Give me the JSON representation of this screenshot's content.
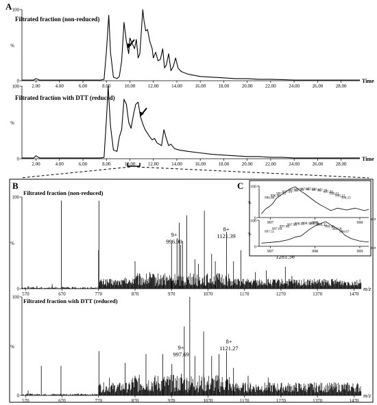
{
  "panels": [
    {
      "letter": "A",
      "title": "Filtrated fraction (non-reduced)"
    },
    {
      "letter": "",
      "title": "Filtrated fraction with DTT  (reduced)"
    },
    {
      "letter": "B",
      "title": "Filtrated fraction (non-reduced)"
    },
    {
      "letter": "",
      "title": "Filtrated fraction with DTT  (reduced)"
    },
    {
      "letter": "C",
      "title": ""
    },
    {
      "letter": "",
      "title": ""
    }
  ],
  "chart_data": [
    {
      "type": "line",
      "title": "Filtrated fraction (non-reduced)",
      "xlabel": "Time",
      "ylabel": "%",
      "xlim": [
        0.8,
        29.6
      ],
      "ylim": [
        0,
        100
      ],
      "x_ticks": [
        "2.00",
        "4.00",
        "6.00",
        "8.00",
        "10.00",
        "12.00",
        "14.00",
        "16.00",
        "18.00",
        "20.00",
        "22.00",
        "24.00",
        "26.00",
        "28.00"
      ],
      "y_ticks": [
        "0",
        "100"
      ],
      "series": [
        {
          "x": [
            0.8,
            1.5,
            1.8,
            2.0,
            2.3,
            3,
            4,
            5,
            6,
            7,
            7.5,
            7.8,
            8.0,
            8.2,
            8.35,
            8.6,
            8.9,
            9.1,
            9.3,
            9.5,
            9.7,
            9.9,
            10.0,
            10.2,
            10.4,
            10.55,
            10.7,
            10.85,
            11.0,
            11.1,
            11.2,
            11.35,
            11.5,
            11.7,
            11.9,
            12.0,
            12.2,
            12.4,
            12.6,
            12.8,
            12.95,
            13.1,
            13.3,
            13.5,
            13.7,
            13.9,
            14.1,
            14.3,
            14.5,
            15,
            16,
            17,
            18,
            19,
            20,
            21,
            22,
            23,
            24,
            25,
            26,
            27,
            28,
            29.6
          ],
          "y": [
            1,
            1,
            1,
            3,
            1,
            1,
            1,
            1,
            1,
            1,
            1,
            2,
            42,
            92,
            40,
            5,
            3,
            6,
            28,
            82,
            55,
            38,
            60,
            52,
            45,
            58,
            32,
            38,
            75,
            100,
            85,
            70,
            72,
            55,
            45,
            32,
            40,
            28,
            30,
            45,
            18,
            22,
            38,
            14,
            20,
            32,
            18,
            14,
            12,
            9,
            6,
            5,
            4,
            3,
            3,
            2,
            2,
            1.5,
            1,
            1,
            1,
            1,
            1,
            1
          ]
        }
      ],
      "annotations": [
        "arrow"
      ]
    },
    {
      "type": "line",
      "title": "Filtrated fraction with DTT  (reduced)",
      "xlabel": "Time",
      "ylabel": "%",
      "xlim": [
        0.8,
        29.6
      ],
      "ylim": [
        0,
        100
      ],
      "x_ticks": [
        "2.00",
        "4.00",
        "6.00",
        "8.00",
        "10.00",
        "12.00",
        "14.00",
        "16.00",
        "18.00",
        "20.00",
        "22.00",
        "24.00",
        "26.00",
        "28.00"
      ],
      "y_ticks": [
        "0",
        "100"
      ],
      "series": [
        {
          "x": [
            0.8,
            1.5,
            1.8,
            2.0,
            2.3,
            3,
            4,
            5,
            6,
            7,
            7.5,
            7.8,
            8.0,
            8.15,
            8.35,
            8.6,
            8.9,
            9.1,
            9.3,
            9.5,
            9.7,
            9.9,
            10.1,
            10.3,
            10.5,
            10.7,
            10.9,
            11.1,
            11.3,
            11.5,
            11.7,
            11.9,
            12.1,
            12.3,
            12.5,
            12.7,
            12.9,
            13.1,
            13.3,
            13.5,
            13.8,
            14.2,
            15,
            16,
            17,
            18,
            19,
            20,
            21,
            22,
            23,
            24,
            25,
            26,
            27,
            28,
            29.6
          ],
          "y": [
            1,
            1,
            1,
            4,
            1,
            1,
            1,
            1,
            1,
            1,
            1,
            2,
            55,
            100,
            45,
            12,
            10,
            30,
            40,
            82,
            75,
            50,
            42,
            60,
            75,
            78,
            58,
            48,
            40,
            35,
            30,
            26,
            28,
            22,
            20,
            18,
            40,
            28,
            18,
            20,
            14,
            12,
            10,
            8,
            6,
            5,
            4,
            3,
            3,
            2,
            2,
            1,
            1,
            1,
            1,
            1,
            1
          ]
        }
      ],
      "annotations": [
        "arrow"
      ]
    },
    {
      "type": "line",
      "title": "Filtrated fraction (non-reduced)",
      "xlabel": "m/z",
      "ylabel": "%",
      "xlim": [
        560,
        1490
      ],
      "ylim": [
        0,
        100
      ],
      "x_ticks": [
        "570",
        "670",
        "770",
        "870",
        "970",
        "1070",
        "1170",
        "1270",
        "1370",
        "1470"
      ],
      "y_ticks": [
        "0",
        "100"
      ],
      "sticks": [
        [
          577,
          3
        ],
        [
          601,
          3
        ],
        [
          643,
          5
        ],
        [
          668,
          96
        ],
        [
          770,
          42
        ],
        [
          771,
          96
        ],
        [
          790,
          10
        ],
        [
          843,
          12
        ],
        [
          870,
          30
        ],
        [
          910,
          18
        ],
        [
          948,
          15
        ],
        [
          970,
          50
        ],
        [
          985,
          55
        ],
        [
          991,
          72
        ],
        [
          995,
          48
        ],
        [
          1000,
          52
        ],
        [
          1012,
          80
        ],
        [
          1034,
          32
        ],
        [
          1044,
          27
        ],
        [
          1060,
          85
        ],
        [
          1080,
          38
        ],
        [
          1090,
          30
        ],
        [
          1121,
          62
        ],
        [
          1140,
          30
        ],
        [
          1160,
          42
        ],
        [
          1200,
          18
        ],
        [
          1230,
          20
        ],
        [
          1282,
          24
        ],
        [
          1300,
          14
        ]
      ],
      "peak_labels": [
        {
          "charge": "9+",
          "mz": "996.90"
        },
        {
          "charge": "8+",
          "mz": "1121.39"
        },
        {
          "charge": "7+",
          "mz": "1281.56"
        }
      ]
    },
    {
      "type": "line",
      "title": "Filtrated fraction with DTT  (reduced)",
      "xlabel": "m/z",
      "ylabel": "%",
      "xlim": [
        560,
        1490
      ],
      "ylim": [
        0,
        100
      ],
      "x_ticks": [
        "570",
        "670",
        "770",
        "870",
        "970",
        "1070",
        "1170",
        "1270",
        "1370",
        "1470"
      ],
      "y_ticks": [
        "0",
        "100"
      ],
      "sticks": [
        [
          577,
          5
        ],
        [
          613,
          30
        ],
        [
          667,
          30
        ],
        [
          770,
          10
        ],
        [
          771,
          45
        ],
        [
          800,
          18
        ],
        [
          843,
          33
        ],
        [
          870,
          20
        ],
        [
          900,
          42
        ],
        [
          946,
          42
        ],
        [
          971,
          32
        ],
        [
          997,
          22
        ],
        [
          1005,
          70
        ],
        [
          1020,
          100
        ],
        [
          1034,
          40
        ],
        [
          1058,
          65
        ],
        [
          1080,
          40
        ],
        [
          1100,
          42
        ],
        [
          1121,
          45
        ],
        [
          1140,
          28
        ],
        [
          1180,
          20
        ],
        [
          1235,
          18
        ]
      ],
      "peak_labels": [
        {
          "charge": "9+",
          "mz": "997.69"
        },
        {
          "charge": "8+",
          "mz": "1121.27"
        }
      ]
    },
    {
      "type": "line",
      "title": "",
      "xlabel": "m/z",
      "ylabel": "%",
      "xlim": [
        996.75,
        999.2
      ],
      "ylim": [
        0,
        100
      ],
      "x_ticks": [
        "997",
        "998",
        "999"
      ],
      "y_ticks": [
        "0",
        "100"
      ],
      "series": [
        {
          "x": [
            996.8,
            996.9,
            996.98,
            997.06,
            997.13,
            997.24,
            997.35,
            997.45,
            997.56,
            997.67,
            997.78,
            997.9,
            998.01,
            998.12,
            998.23,
            998.35,
            998.5,
            998.7,
            998.9,
            999.1,
            999.2
          ],
          "y": [
            12,
            28,
            35,
            45,
            60,
            72,
            82,
            92,
            98,
            85,
            75,
            62,
            50,
            40,
            32,
            22,
            30,
            24,
            30,
            22,
            26
          ]
        }
      ],
      "peak_labels": [
        "996.80",
        "996.90",
        "997.01",
        "997.13",
        "997.24",
        "997.35",
        "997.45",
        "997.56",
        "997.67",
        "997.78",
        "997.90",
        "998.01",
        "998.12",
        "998.23"
      ]
    },
    {
      "type": "line",
      "title": "",
      "xlabel": "m/z",
      "ylabel": "%",
      "xlim": [
        996.75,
        999.2
      ],
      "ylim": [
        0,
        100
      ],
      "x_ticks": [
        "997",
        "998",
        "999"
      ],
      "y_ticks": [
        "0",
        "100"
      ],
      "series": [
        {
          "x": [
            996.8,
            997.0,
            997.2,
            997.4,
            997.55,
            997.69,
            997.8,
            997.9,
            998.02,
            998.13,
            998.24,
            998.35,
            998.46,
            998.58,
            998.67,
            998.8,
            999.0,
            999.2
          ],
          "y": [
            12,
            15,
            18,
            25,
            35,
            40,
            55,
            68,
            80,
            88,
            95,
            82,
            72,
            58,
            42,
            30,
            20,
            16
          ]
        }
      ],
      "peak_labels": [
        "997.51",
        "997.69",
        "997.80",
        "997.90",
        "998.02",
        "998.13",
        "998.24",
        "998.35",
        "998.46",
        "998.58",
        "998.67"
      ]
    }
  ]
}
